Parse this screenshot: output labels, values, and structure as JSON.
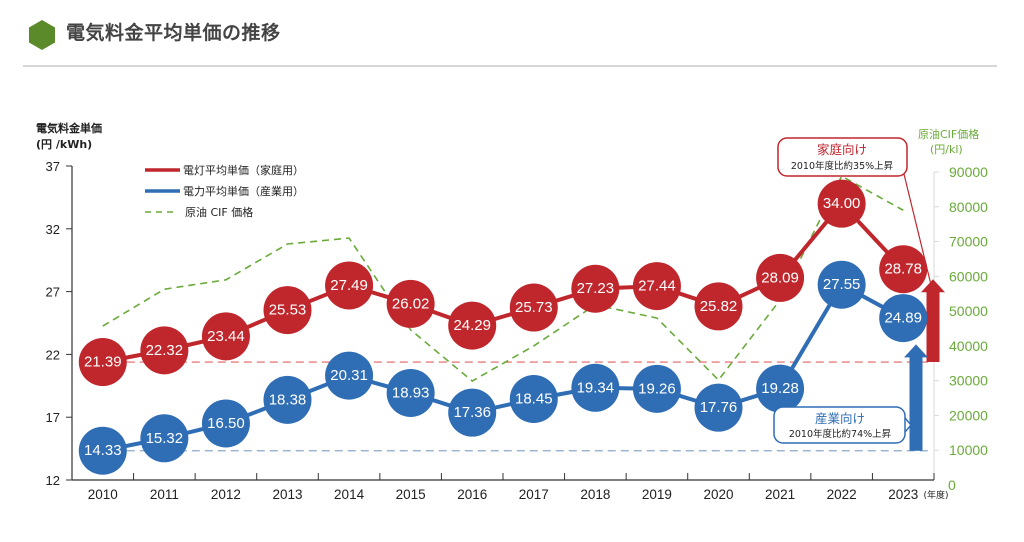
{
  "header": {
    "title": "電気料金平均単価の推移",
    "icon": "hexagon-icon",
    "icon_color": "#5a8a2a"
  },
  "chart_data": {
    "type": "line",
    "title": "電気料金平均単価の推移",
    "x": [
      "2010",
      "2011",
      "2012",
      "2013",
      "2014",
      "2015",
      "2016",
      "2017",
      "2018",
      "2019",
      "2020",
      "2021",
      "2022",
      "2023"
    ],
    "x_unit": "(年度)",
    "ylabel_left": [
      "電気料金単価",
      "(円 /kWh)"
    ],
    "ylabel_right": [
      "原油CIF価格",
      "(円/kl)"
    ],
    "ylim_left": [
      12,
      37
    ],
    "yticks_left": [
      "37",
      "32",
      "27",
      "22",
      "17",
      "12"
    ],
    "ylim_right": [
      0,
      90000
    ],
    "yticks_right": [
      "90000",
      "80000",
      "70000",
      "60000",
      "50000",
      "40000",
      "30000",
      "20000",
      "10000",
      "0"
    ],
    "legend_position": "top-left",
    "grid": false,
    "series": [
      {
        "name": "電灯平均単価（家庭用）",
        "axis": "left",
        "color": "#c0272d",
        "values": [
          21.39,
          22.32,
          23.44,
          25.53,
          27.49,
          26.02,
          24.29,
          25.73,
          27.23,
          27.44,
          25.82,
          28.09,
          34.0,
          28.78
        ],
        "labels": [
          "21.39",
          "22.32",
          "23.44",
          "25.53",
          "27.49",
          "26.02",
          "24.29",
          "25.73",
          "27.23",
          "27.44",
          "25.82",
          "28.09",
          "34.00",
          "28.78"
        ]
      },
      {
        "name": "電力平均単価（産業用）",
        "axis": "left",
        "color": "#2f6db5",
        "values": [
          14.33,
          15.32,
          16.5,
          18.38,
          20.31,
          18.93,
          17.36,
          18.45,
          19.34,
          19.26,
          17.76,
          19.28,
          27.55,
          24.89
        ],
        "labels": [
          "14.33",
          "15.32",
          "16.50",
          "18.38",
          "20.31",
          "18.93",
          "17.36",
          "18.45",
          "19.34",
          "19.26",
          "17.76",
          "19.28",
          "27.55",
          "24.89"
        ]
      },
      {
        "name": "原油 CIF 価格",
        "axis": "right",
        "color": "#6aaa3a",
        "style": "dashed",
        "values": [
          45700,
          56300,
          59000,
          69300,
          71000,
          44600,
          29900,
          40000,
          51800,
          48000,
          30200,
          53200,
          88800,
          79000
        ]
      }
    ],
    "baselines": [
      {
        "series": "電灯平均単価（家庭用）",
        "value": 21.39,
        "color": "#e06060"
      },
      {
        "series": "電力平均単価（産業用）",
        "value": 14.33,
        "color": "#8fa8c8"
      }
    ],
    "annotations": [
      {
        "title": "家庭向け",
        "text": "2010年度比約35%上昇",
        "color": "#c0272d",
        "from": 21.39,
        "to": 28.78
      },
      {
        "title": "産業向け",
        "text": "2010年度比約74%上昇",
        "color": "#2f6db5",
        "from": 14.33,
        "to": 24.89
      }
    ]
  }
}
